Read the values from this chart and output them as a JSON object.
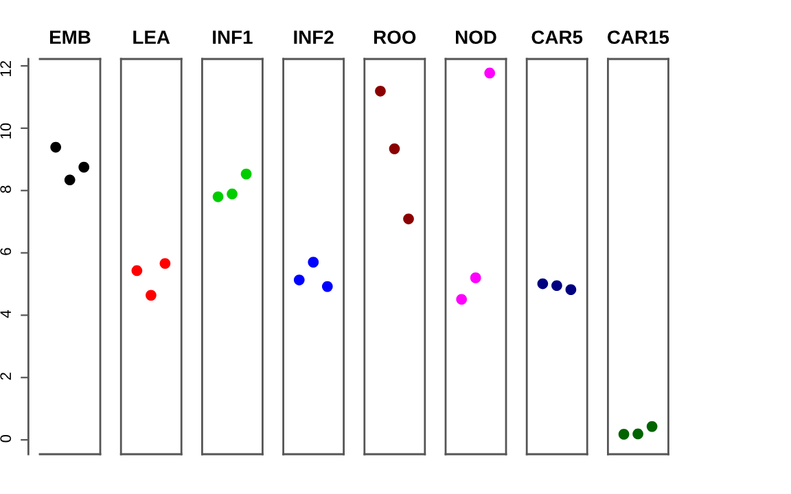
{
  "chart_data": {
    "type": "scatter",
    "categories": [
      "EMB",
      "LEA",
      "INF1",
      "INF2",
      "ROO",
      "NOD",
      "CAR5",
      "CAR15"
    ],
    "series": [
      {
        "values": [
          9.39,
          5.43,
          7.8,
          5.13,
          11.19,
          4.51,
          5.01,
          0.18
        ],
        "colors": [
          "#000000",
          "#ff0000",
          "#00cd00",
          "#0000ff",
          "#8b0000",
          "#ff00ff",
          "#000080",
          "#006400"
        ]
      },
      {
        "values": [
          8.34,
          4.64,
          7.89,
          5.7,
          9.34,
          5.2,
          4.95,
          0.19
        ],
        "colors": [
          "#000000",
          "#ff0000",
          "#00cd00",
          "#0000ff",
          "#8b0000",
          "#ff00ff",
          "#000080",
          "#006400"
        ]
      },
      {
        "values": [
          8.75,
          5.66,
          8.53,
          4.92,
          7.09,
          11.77,
          4.82,
          0.43
        ],
        "colors": [
          "#000000",
          "#ff0000",
          "#00cd00",
          "#0000ff",
          "#8b0000",
          "#ff00ff",
          "#000080",
          "#006400"
        ]
      }
    ],
    "ylim": [
      -0.46,
      12.22
    ],
    "yticks": [
      0,
      2,
      4,
      6,
      8,
      10,
      12
    ],
    "marker": "circle"
  }
}
